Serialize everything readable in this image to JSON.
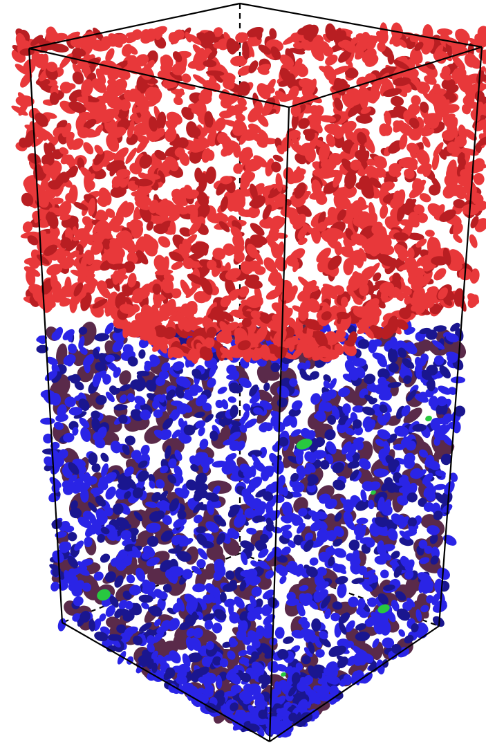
{
  "scene": {
    "description_type": "3D molecular simulation box render",
    "colors": {
      "background": "#ffffff",
      "box_edges": "#000000",
      "upper_phase": "#e8383a",
      "upper_phase_shadow": "#b81e22",
      "lower_phase": "#2a24e6",
      "lower_phase_shadow": "#1a168f",
      "lower_phase_dark": "#5a2a4a",
      "minor_particles": "#28c840"
    },
    "phases": [
      {
        "name": "upper",
        "color_key": "upper_phase"
      },
      {
        "name": "lower",
        "color_key": "lower_phase"
      },
      {
        "name": "minor",
        "color_key": "minor_particles"
      }
    ]
  }
}
